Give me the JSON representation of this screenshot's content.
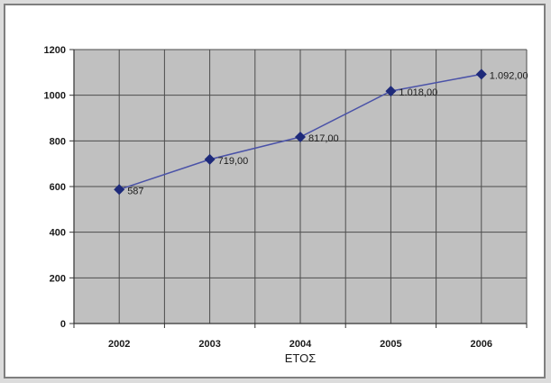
{
  "chart_data": {
    "type": "line",
    "categories": [
      "2002",
      "2003",
      "2004",
      "2005",
      "2006"
    ],
    "series": [
      {
        "values": [
          587,
          719,
          817,
          1018,
          1092
        ]
      }
    ],
    "data_labels": [
      "587",
      "719,00",
      "817,00",
      "1.018,00",
      "1.092,00"
    ],
    "xlabel": "ΕΤΟΣ",
    "ylabel": "",
    "ylim": [
      0,
      1200
    ],
    "y_ticks": [
      "0",
      "200",
      "400",
      "600",
      "800",
      "1000",
      "1200"
    ],
    "grid": true,
    "legend": "none",
    "colors": {
      "plot_background": "#c0c0c0",
      "line": "#4a52a8",
      "marker": "#1e2a7a",
      "grid": "#4d4d4d"
    }
  }
}
